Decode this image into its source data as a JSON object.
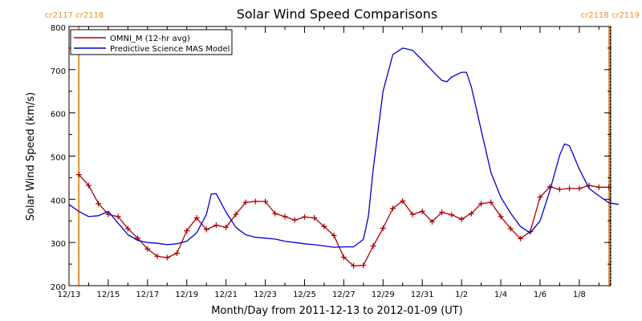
{
  "chart_data": {
    "type": "line",
    "title": "Solar Wind Speed Comparisons",
    "xlabel": "Month/Day from 2011-12-13 to 2012-01-09 (UT)",
    "ylabel": "Solar Wind Speed (km/s)",
    "xlim": [
      "2011-12-13",
      "2012-01-09"
    ],
    "ylim": [
      200,
      800
    ],
    "x_tick_labels": [
      {
        "date": "2011-12-13",
        "label": "12/13"
      },
      {
        "date": "2011-12-15",
        "label": "12/15"
      },
      {
        "date": "2011-12-17",
        "label": "12/17"
      },
      {
        "date": "2011-12-19",
        "label": "12/19"
      },
      {
        "date": "2011-12-21",
        "label": "12/21"
      },
      {
        "date": "2011-12-23",
        "label": "12/23"
      },
      {
        "date": "2011-12-25",
        "label": "12/25"
      },
      {
        "date": "2011-12-27",
        "label": "12/27"
      },
      {
        "date": "2011-12-29",
        "label": "12/29"
      },
      {
        "date": "2011-12-31",
        "label": "12/31"
      },
      {
        "date": "2012-01-02",
        "label": "1/2"
      },
      {
        "date": "2012-01-04",
        "label": "1/4"
      },
      {
        "date": "2012-01-06",
        "label": "1/6"
      },
      {
        "date": "2012-01-08",
        "label": "1/8"
      }
    ],
    "y_ticks": [
      200,
      300,
      400,
      500,
      600,
      700,
      800
    ],
    "legend_position": "top-left",
    "grid": false,
    "series": [
      {
        "name": "OMNI_M (12-hr avg)",
        "color": "#aa0000",
        "marker": "plus",
        "points": [
          [
            "2011-12-13 12:00",
            457
          ],
          [
            "2011-12-14 00:00",
            432
          ],
          [
            "2011-12-14 12:00",
            390
          ],
          [
            "2011-12-15 00:00",
            365
          ],
          [
            "2011-12-15 12:00",
            360
          ],
          [
            "2011-12-16 00:00",
            332
          ],
          [
            "2011-12-16 12:00",
            310
          ],
          [
            "2011-12-17 00:00",
            285
          ],
          [
            "2011-12-17 12:00",
            268
          ],
          [
            "2011-12-18 00:00",
            265
          ],
          [
            "2011-12-18 12:00",
            275
          ],
          [
            "2011-12-19 00:00",
            327
          ],
          [
            "2011-12-19 12:00",
            357
          ],
          [
            "2011-12-20 00:00",
            330
          ],
          [
            "2011-12-20 12:00",
            340
          ],
          [
            "2011-12-21 00:00",
            335
          ],
          [
            "2011-12-21 12:00",
            365
          ],
          [
            "2011-12-22 00:00",
            393
          ],
          [
            "2011-12-22 12:00",
            395
          ],
          [
            "2011-12-23 00:00",
            395
          ],
          [
            "2011-12-23 12:00",
            367
          ],
          [
            "2011-12-24 00:00",
            360
          ],
          [
            "2011-12-24 12:00",
            352
          ],
          [
            "2011-12-25 00:00",
            359
          ],
          [
            "2011-12-25 12:00",
            357
          ],
          [
            "2011-12-26 00:00",
            337
          ],
          [
            "2011-12-26 12:00",
            316
          ],
          [
            "2011-12-27 00:00",
            266
          ],
          [
            "2011-12-27 12:00",
            246
          ],
          [
            "2011-12-28 00:00",
            247
          ],
          [
            "2011-12-28 12:00",
            292
          ],
          [
            "2011-12-29 00:00",
            333
          ],
          [
            "2011-12-29 12:00",
            379
          ],
          [
            "2011-12-30 00:00",
            396
          ],
          [
            "2011-12-30 12:00",
            365
          ],
          [
            "2011-12-31 00:00",
            372
          ],
          [
            "2011-12-31 12:00",
            348
          ],
          [
            "2012-01-01 00:00",
            370
          ],
          [
            "2012-01-01 12:00",
            364
          ],
          [
            "2012-01-02 00:00",
            354
          ],
          [
            "2012-01-02 12:00",
            367
          ],
          [
            "2012-01-03 00:00",
            390
          ],
          [
            "2012-01-03 12:00",
            393
          ],
          [
            "2012-01-04 00:00",
            360
          ],
          [
            "2012-01-04 12:00",
            332
          ],
          [
            "2012-01-05 00:00",
            309
          ],
          [
            "2012-01-05 12:00",
            325
          ],
          [
            "2012-01-06 00:00",
            405
          ],
          [
            "2012-01-06 12:00",
            429
          ],
          [
            "2012-01-07 00:00",
            423
          ],
          [
            "2012-01-07 12:00",
            425
          ],
          [
            "2012-01-08 00:00",
            425
          ],
          [
            "2012-01-08 12:00",
            432
          ],
          [
            "2012-01-09 00:00",
            428
          ],
          [
            "2012-01-09 12:00",
            428
          ]
        ]
      },
      {
        "name": "Predictive Science MAS Model",
        "color": "#0000cc",
        "marker": "none",
        "points": [
          [
            "2011-12-13 00:00",
            388
          ],
          [
            "2011-12-13 12:00",
            372
          ],
          [
            "2011-12-14 00:00",
            360
          ],
          [
            "2011-12-14 12:00",
            362
          ],
          [
            "2011-12-15 00:00",
            372
          ],
          [
            "2011-12-15 12:00",
            345
          ],
          [
            "2011-12-16 00:00",
            318
          ],
          [
            "2011-12-16 12:00",
            305
          ],
          [
            "2011-12-17 00:00",
            300
          ],
          [
            "2011-12-17 12:00",
            298
          ],
          [
            "2011-12-18 00:00",
            295
          ],
          [
            "2011-12-18 12:00",
            297
          ],
          [
            "2011-12-19 00:00",
            303
          ],
          [
            "2011-12-19 12:00",
            322
          ],
          [
            "2011-12-20 00:00",
            365
          ],
          [
            "2011-12-20 06:00",
            412
          ],
          [
            "2011-12-20 12:00",
            413
          ],
          [
            "2011-12-21 00:00",
            370
          ],
          [
            "2011-12-21 12:00",
            335
          ],
          [
            "2011-12-22 00:00",
            318
          ],
          [
            "2011-12-22 12:00",
            312
          ],
          [
            "2011-12-23 00:00",
            310
          ],
          [
            "2011-12-23 12:00",
            308
          ],
          [
            "2011-12-24 00:00",
            303
          ],
          [
            "2011-12-24 12:00",
            300
          ],
          [
            "2011-12-25 00:00",
            297
          ],
          [
            "2011-12-25 12:00",
            295
          ],
          [
            "2011-12-26 00:00",
            292
          ],
          [
            "2011-12-26 12:00",
            289
          ],
          [
            "2011-12-27 00:00",
            290
          ],
          [
            "2011-12-27 12:00",
            290
          ],
          [
            "2011-12-28 00:00",
            307
          ],
          [
            "2011-12-28 06:00",
            360
          ],
          [
            "2011-12-28 12:00",
            470
          ],
          [
            "2011-12-29 00:00",
            650
          ],
          [
            "2011-12-29 12:00",
            735
          ],
          [
            "2011-12-30 00:00",
            750
          ],
          [
            "2011-12-30 12:00",
            745
          ],
          [
            "2011-12-31 00:00",
            722
          ],
          [
            "2011-12-31 12:00",
            698
          ],
          [
            "2012-01-01 00:00",
            675
          ],
          [
            "2012-01-01 06:00",
            672
          ],
          [
            "2012-01-01 12:00",
            683
          ],
          [
            "2012-01-02 00:00",
            694
          ],
          [
            "2012-01-02 06:00",
            694
          ],
          [
            "2012-01-02 12:00",
            660
          ],
          [
            "2012-01-03 00:00",
            560
          ],
          [
            "2012-01-03 12:00",
            462
          ],
          [
            "2012-01-04 00:00",
            405
          ],
          [
            "2012-01-04 12:00",
            368
          ],
          [
            "2012-01-05 00:00",
            337
          ],
          [
            "2012-01-05 12:00",
            322
          ],
          [
            "2012-01-06 00:00",
            350
          ],
          [
            "2012-01-06 12:00",
            420
          ],
          [
            "2012-01-07 00:00",
            502
          ],
          [
            "2012-01-07 06:00",
            528
          ],
          [
            "2012-01-07 12:00",
            524
          ],
          [
            "2012-01-08 00:00",
            470
          ],
          [
            "2012-01-08 12:00",
            425
          ],
          [
            "2012-01-09 00:00",
            408
          ],
          [
            "2012-01-09 12:00",
            392
          ],
          [
            "2012-01-10 00:00",
            388
          ]
        ]
      }
    ],
    "carrington_markers": {
      "color": "#e8902a",
      "top_left_labels": "cr2117 cr2118",
      "top_right_labels": "cr2118 cr2119",
      "boundaries": [
        "2011-12-13 12:00",
        "2012-01-10 00:00"
      ]
    }
  }
}
